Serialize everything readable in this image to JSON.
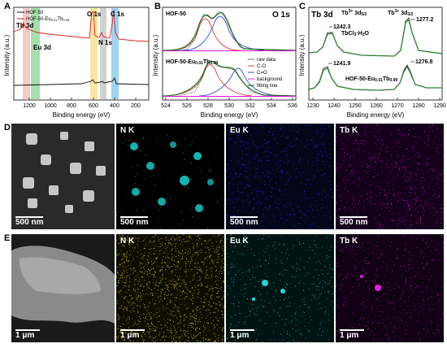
{
  "panels": {
    "A": "A",
    "B": "B",
    "C": "C",
    "D": "D",
    "E": "E"
  },
  "xps_a": {
    "xlabel": "Binding energy (eV)",
    "ylabel": "Intensity (a.u.)",
    "legend": [
      "HOF-50",
      "HOF-50-Eu0.01Tb0.99"
    ],
    "legend_sub": "0.01",
    "peaks": [
      "Tb 3d",
      "Eu 3d",
      "O 1s",
      "N 1s",
      "C 1s"
    ],
    "xticks": [
      "1200",
      "1000",
      "800",
      "600",
      "400",
      "200"
    ],
    "colors": {
      "tb": "#f4b9b3",
      "eu": "#7ed28a",
      "o": "#f6e08a",
      "n": "#bdbdbd",
      "c": "#89c8ef",
      "red": "#e02020",
      "black": "#111111"
    }
  },
  "xps_b": {
    "title": "O 1s",
    "top_label": "HOF-50",
    "bottom_label": "HOF-50-Eu0.01Tb0.99",
    "xlabel": "Binding energy (eV)",
    "ylabel": "Intensity (a.u.)",
    "legend": [
      "raw data",
      "C-O",
      "C=O",
      "background",
      "fitting line"
    ],
    "xticks": [
      "524",
      "526",
      "528",
      "530",
      "532",
      "534",
      "536"
    ],
    "colors": {
      "co": "#e53935",
      "c2o": "#2f4fd6",
      "bg": "#d81bd6",
      "fit": "#2e7d32",
      "raw": "#111111"
    }
  },
  "xps_c": {
    "title": "Tb 3d",
    "label_52": "Tb3+ 3d5/2",
    "label_32": "Tb3+ 3d3/2",
    "peak1": "1242.3",
    "peak2": "1277.2",
    "peak3": "1241.9",
    "peak4": "1276.8",
    "ref": "TbCl3·H2O",
    "sample": "HOF-50-Eu0.01Tb0.99",
    "xlabel": "Binding energy (eV)",
    "ylabel": "Intensity (a.u.)",
    "xticks": [
      "1230",
      "1240",
      "1250",
      "1260",
      "1270",
      "1280",
      "1290"
    ]
  },
  "maps_d": [
    {
      "title": "",
      "scale": "500 nm"
    },
    {
      "title": "N K",
      "scale": "500 nm"
    },
    {
      "title": "Eu K",
      "scale": "500 nm"
    },
    {
      "title": "Tb K",
      "scale": "500 nm"
    }
  ],
  "maps_e": [
    {
      "title": "",
      "scale": "1 μm"
    },
    {
      "title": "N K",
      "scale": "1 μm"
    },
    {
      "title": "Eu K",
      "scale": "1 μm"
    },
    {
      "title": "Tb K",
      "scale": "1 μm"
    }
  ],
  "map_colors": {
    "n_d": "#19d3d3",
    "eu_d": "#2b3cff",
    "tb_d": "#e020e0",
    "n_e": "#f2e21a",
    "eu_e": "#1ed8d8",
    "tb_e": "#e020e0"
  }
}
